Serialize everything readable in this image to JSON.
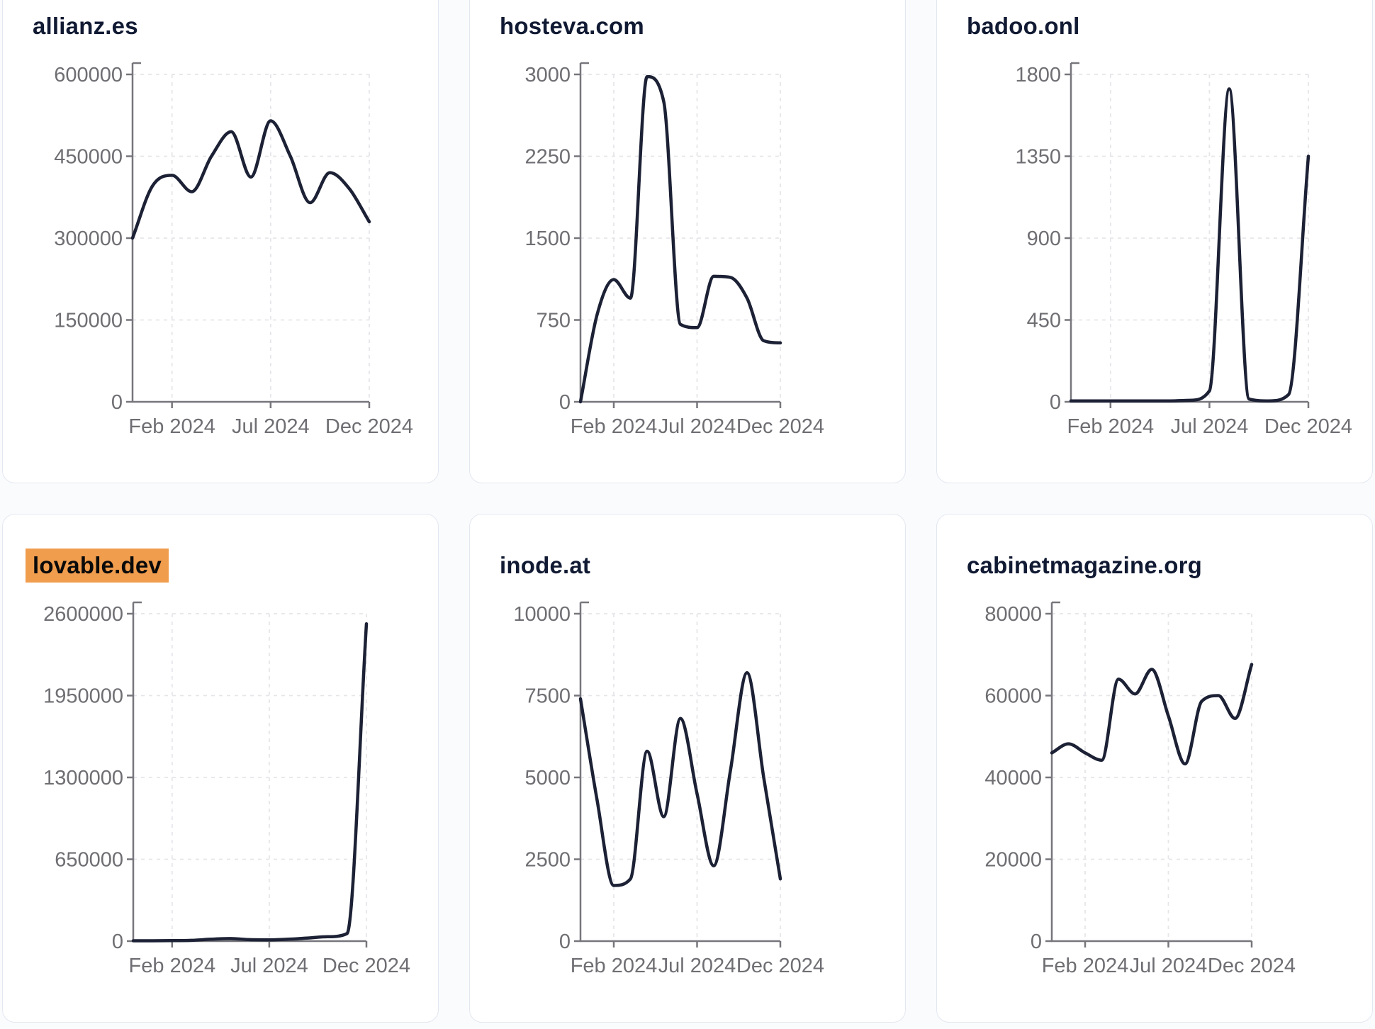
{
  "page": {
    "background": "#fafbfc",
    "card_background": "#ffffff",
    "card_border": "#e3e7f0"
  },
  "styles": {
    "line_color": "#1c2135",
    "axis_color": "#76767c",
    "tick_label_color": "#6e6e73",
    "title_color": "#111a33",
    "gridline_color": "#e6e6ea",
    "highlight_color": "#f09d4e",
    "highlight_text_color": "#0a0a0a"
  },
  "x_axis": {
    "tick_labels": [
      "Feb 2024",
      "Jul 2024",
      "Dec 2024"
    ],
    "tick_month_indices": [
      2,
      7,
      12
    ]
  },
  "chart_data": [
    {
      "type": "line",
      "title": "allianz.es",
      "highlighted": false,
      "x": [
        "Dec 2023",
        "Jan 2024",
        "Feb 2024",
        "Mar 2024",
        "Apr 2024",
        "May 2024",
        "Jun 2024",
        "Jul 2024",
        "Aug 2024",
        "Sep 2024",
        "Oct 2024",
        "Nov 2024",
        "Dec 2024"
      ],
      "values": [
        300000,
        395000,
        415000,
        385000,
        450000,
        495000,
        412000,
        515000,
        450000,
        365000,
        420000,
        390000,
        330000
      ],
      "ylim": [
        0,
        600000
      ],
      "y_ticks": [
        0,
        150000,
        300000,
        450000,
        600000
      ],
      "x_tick_labels": [
        "Feb 2024",
        "Jul 2024",
        "Dec 2024"
      ],
      "grid": true,
      "legend": "none"
    },
    {
      "type": "line",
      "title": "hosteva.com",
      "highlighted": false,
      "x": [
        "Dec 2023",
        "Jan 2024",
        "Feb 2024",
        "Mar 2024",
        "Apr 2024",
        "May 2024",
        "Jun 2024",
        "Jul 2024",
        "Aug 2024",
        "Sep 2024",
        "Oct 2024",
        "Nov 2024",
        "Dec 2024"
      ],
      "values": [
        0,
        800,
        1120,
        950,
        2980,
        2750,
        710,
        680,
        1150,
        1140,
        950,
        560,
        540
      ],
      "ylim": [
        0,
        3000
      ],
      "y_ticks": [
        0,
        750,
        1500,
        2250,
        3000
      ],
      "x_tick_labels": [
        "Feb 2024",
        "Jul 2024",
        "Dec 2024"
      ],
      "grid": true,
      "legend": "none"
    },
    {
      "type": "line",
      "title": "badoo.onl",
      "highlighted": false,
      "x": [
        "Dec 2023",
        "Jan 2024",
        "Feb 2024",
        "Mar 2024",
        "Apr 2024",
        "May 2024",
        "Jun 2024",
        "Jul 2024",
        "Aug 2024",
        "Sep 2024",
        "Oct 2024",
        "Nov 2024",
        "Dec 2024"
      ],
      "values": [
        5,
        5,
        5,
        5,
        5,
        5,
        8,
        60,
        1720,
        15,
        5,
        40,
        1350
      ],
      "ylim": [
        0,
        1800
      ],
      "y_ticks": [
        0,
        450,
        900,
        1350,
        1800
      ],
      "x_tick_labels": [
        "Feb 2024",
        "Jul 2024",
        "Dec 2024"
      ],
      "grid": true,
      "legend": "none"
    },
    {
      "type": "line",
      "title": "lovable.dev",
      "highlighted": true,
      "x": [
        "Dec 2023",
        "Jan 2024",
        "Feb 2024",
        "Mar 2024",
        "Apr 2024",
        "May 2024",
        "Jun 2024",
        "Jul 2024",
        "Aug 2024",
        "Sep 2024",
        "Oct 2024",
        "Nov 2024",
        "Dec 2024"
      ],
      "values": [
        3000,
        3000,
        4000,
        6000,
        15000,
        20000,
        12000,
        10000,
        15000,
        25000,
        35000,
        60000,
        2520000
      ],
      "ylim": [
        0,
        2600000
      ],
      "y_ticks": [
        0,
        650000,
        1300000,
        1950000,
        2600000
      ],
      "x_tick_labels": [
        "Feb 2024",
        "Jul 2024",
        "Dec 2024"
      ],
      "grid": true,
      "legend": "none"
    },
    {
      "type": "line",
      "title": "inode.at",
      "highlighted": false,
      "x": [
        "Dec 2023",
        "Jan 2024",
        "Feb 2024",
        "Mar 2024",
        "Apr 2024",
        "May 2024",
        "Jun 2024",
        "Jul 2024",
        "Aug 2024",
        "Sep 2024",
        "Oct 2024",
        "Nov 2024",
        "Dec 2024"
      ],
      "values": [
        7400,
        4300,
        1700,
        1900,
        5800,
        3800,
        6800,
        4500,
        2300,
        5200,
        8200,
        5000,
        1900
      ],
      "ylim": [
        0,
        10000
      ],
      "y_ticks": [
        0,
        2500,
        5000,
        7500,
        10000
      ],
      "x_tick_labels": [
        "Feb 2024",
        "Jul 2024",
        "Dec 2024"
      ],
      "grid": true,
      "legend": "none"
    },
    {
      "type": "line",
      "title": "cabinetmagazine.org",
      "highlighted": false,
      "x": [
        "Dec 2023",
        "Jan 2024",
        "Feb 2024",
        "Mar 2024",
        "Apr 2024",
        "May 2024",
        "Jun 2024",
        "Jul 2024",
        "Aug 2024",
        "Sep 2024",
        "Oct 2024",
        "Nov 2024",
        "Dec 2024"
      ],
      "values": [
        46000,
        48200,
        46000,
        44200,
        64000,
        60400,
        66400,
        55000,
        43300,
        58600,
        60000,
        54400,
        67600
      ],
      "ylim": [
        0,
        80000
      ],
      "y_ticks": [
        0,
        20000,
        40000,
        60000,
        80000
      ],
      "x_tick_labels": [
        "Feb 2024",
        "Jul 2024",
        "Dec 2024"
      ],
      "grid": true,
      "legend": "none"
    }
  ]
}
